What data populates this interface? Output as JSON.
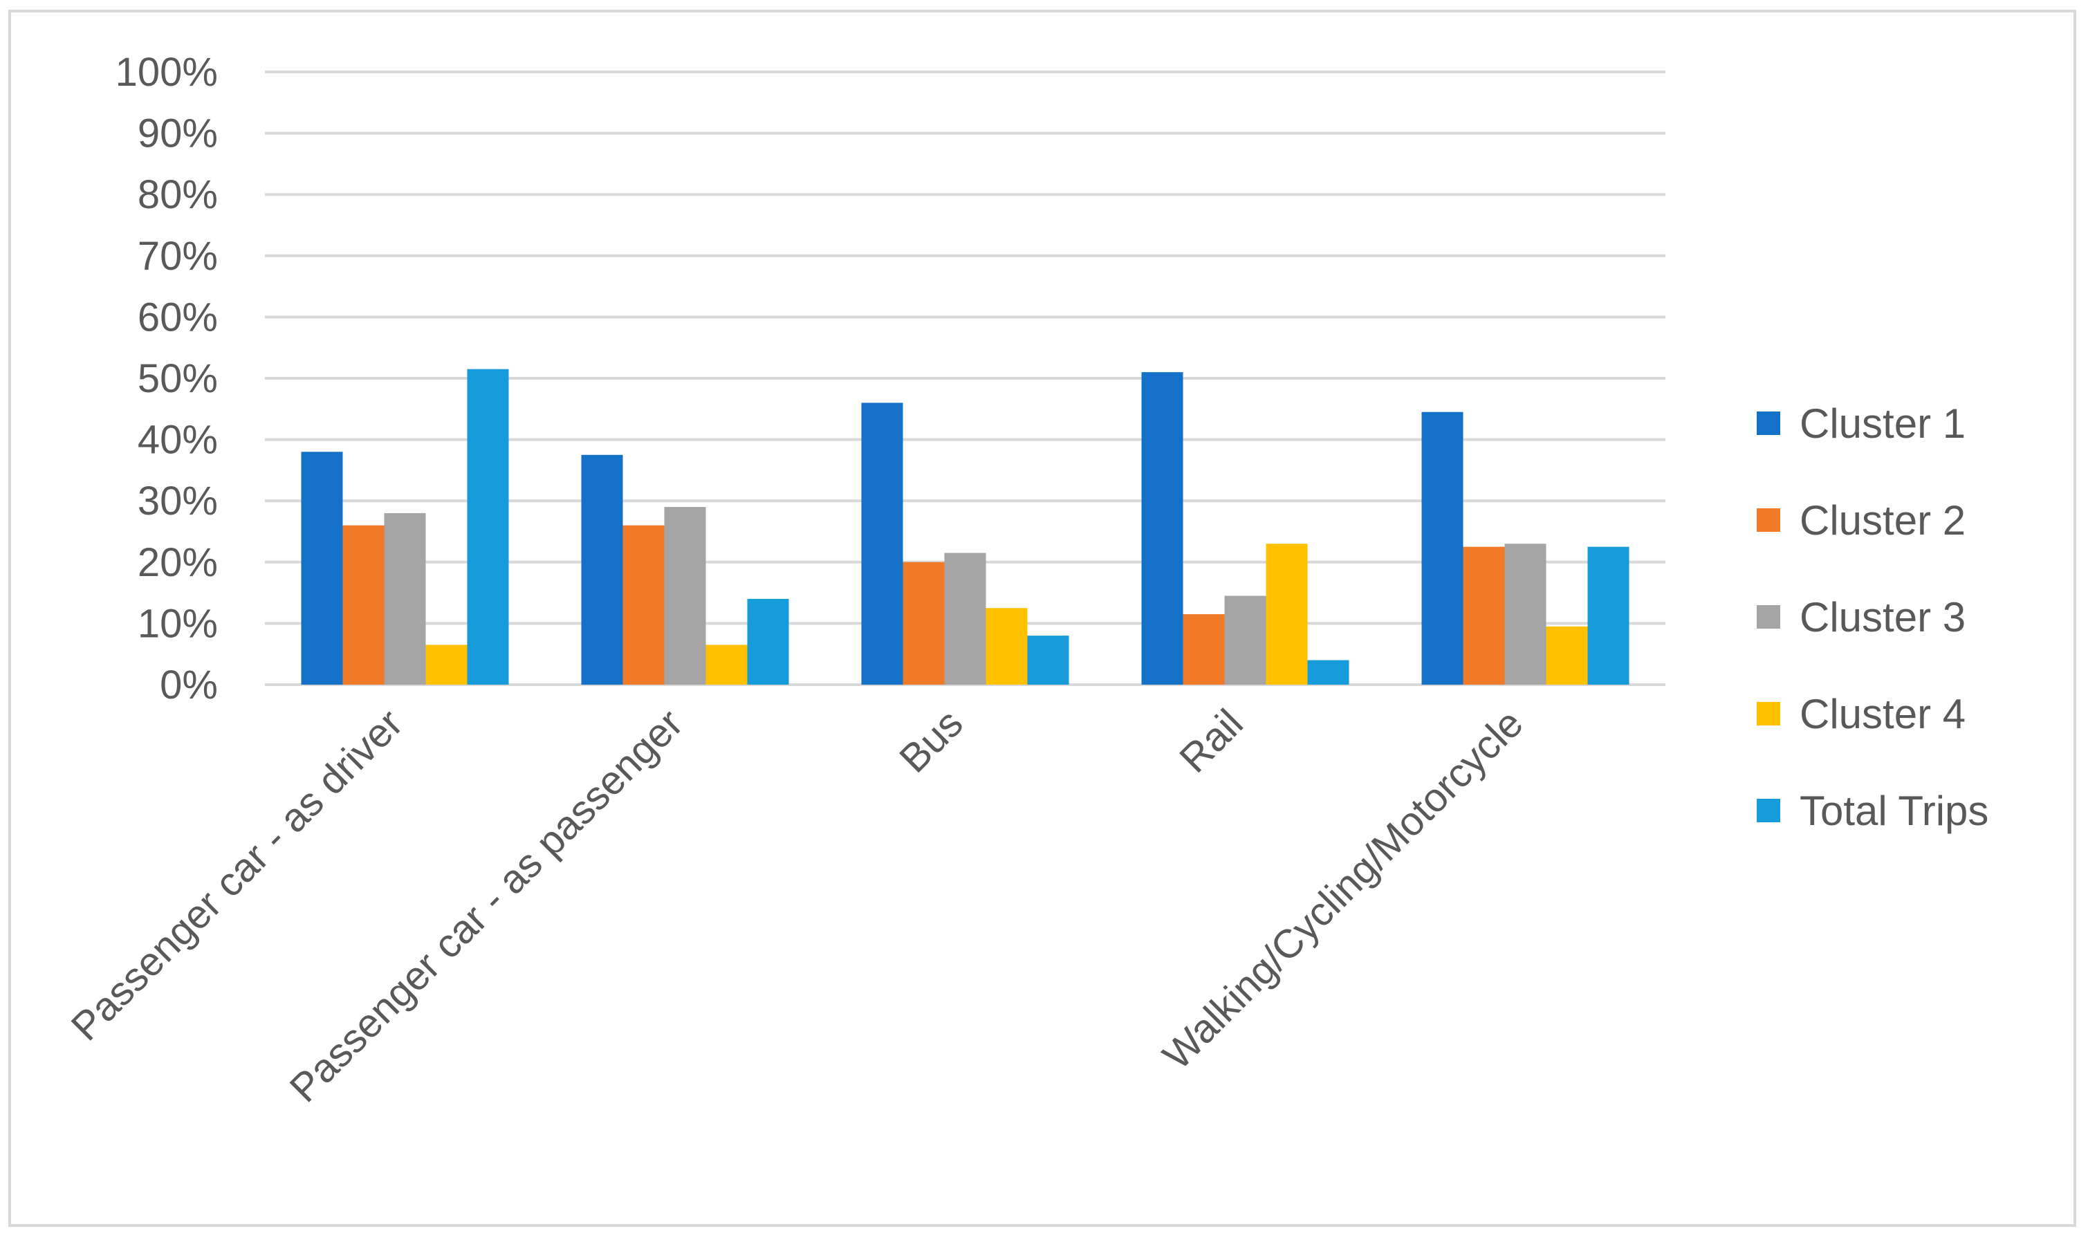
{
  "chart_data": {
    "type": "bar",
    "categories": [
      "Passenger car - as driver",
      "Passenger car - as passenger",
      "Bus",
      "Rail",
      "Walking/Cycling/Motorcycle"
    ],
    "series": [
      {
        "name": "Cluster 1",
        "color": "#1570C8",
        "values": [
          38,
          37.5,
          46,
          51,
          44.5
        ]
      },
      {
        "name": "Cluster 2",
        "color": "#F07A28",
        "values": [
          26,
          26,
          20,
          11.5,
          22.5
        ]
      },
      {
        "name": "Cluster 3",
        "color": "#A5A5A5",
        "values": [
          28,
          29,
          21.5,
          14.5,
          23
        ]
      },
      {
        "name": "Cluster 4",
        "color": "#FFC000",
        "values": [
          6.5,
          6.5,
          12.5,
          23,
          9.5
        ]
      },
      {
        "name": "Total Trips",
        "color": "#169CDA",
        "values": [
          51.5,
          14,
          8,
          4,
          22.5
        ]
      }
    ],
    "y_ticks": [
      "0%",
      "10%",
      "20%",
      "30%",
      "40%",
      "50%",
      "60%",
      "70%",
      "80%",
      "90%",
      "100%"
    ],
    "ylim": [
      0,
      100
    ],
    "y_unit": "%",
    "title": "",
    "xlabel": "",
    "ylabel": "",
    "grid": true,
    "legend_position": "right"
  }
}
